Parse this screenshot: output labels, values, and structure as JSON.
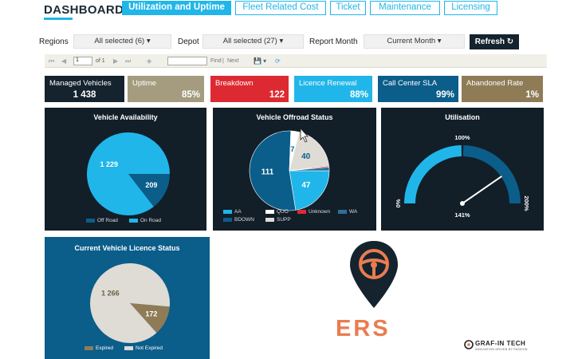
{
  "header": {
    "title": "DASHBOARD",
    "tabs": [
      {
        "label": "Utilization and Uptime",
        "active": true
      },
      {
        "label": "Fleet Related Cost",
        "active": false
      },
      {
        "label": "Ticket",
        "active": false
      },
      {
        "label": "Maintenance",
        "active": false
      },
      {
        "label": "Licensing",
        "active": false
      }
    ]
  },
  "filters": {
    "regions_label": "Regions",
    "regions_value": "All selected (6) ▾",
    "depot_label": "Depot",
    "depot_value": "All selected (27) ▾",
    "month_label": "Report Month",
    "month_value": "Current Month ▾",
    "refresh_label": "Refresh ↻"
  },
  "toolbar": {
    "first": "⏮",
    "prev": "◀",
    "page_value": "1",
    "of_pages": "of 1",
    "next": "▶",
    "last": "⏭",
    "back": "◈",
    "find": "Find",
    "separator": "|",
    "next_find": "Next",
    "export": "💾 ▾",
    "refresh_icon": "⟳"
  },
  "kpis": [
    {
      "label": "Managed Vehicles",
      "value": "1 438",
      "color": "#14232e"
    },
    {
      "label": "Uptime",
      "value": "85%",
      "color": "#a59c7f"
    },
    {
      "label": "Breakdown",
      "value": "122",
      "color": "#dd2a32"
    },
    {
      "label": "Licence Renewal",
      "value": "88%",
      "color": "#21b6e9"
    },
    {
      "label": "Call Center SLA",
      "value": "99%",
      "color": "#0b5d8a"
    },
    {
      "label": "Abandoned Rate",
      "value": "1%",
      "color": "#8f7c57"
    }
  ],
  "availability": {
    "title": "Vehicle Availability",
    "chart_data": {
      "type": "pie",
      "title": "Vehicle Availability",
      "labels": [
        "Off Road",
        "On Road"
      ],
      "values": [
        209,
        1229
      ],
      "colors": [
        "#0b5d8a",
        "#21b6e9"
      ],
      "legend": "bottom"
    },
    "value_labels": [
      "209",
      "1 229"
    ]
  },
  "offroad": {
    "title": "Vehicle Offroad Status",
    "chart_data": {
      "type": "pie",
      "title": "Vehicle Offroad Status",
      "labels": [
        "AA",
        "BDOWN",
        "QUO",
        "SUPP",
        "Unknown",
        "WA"
      ],
      "values": [
        47,
        111,
        7,
        40,
        1,
        3
      ],
      "colors": [
        "#21b6e9",
        "#0b5d8a",
        "#ffffff",
        "#dedcd5",
        "#dd2a32",
        "#2e6f9a"
      ],
      "legend": "bottom"
    },
    "value_labels": [
      "47",
      "111",
      "7",
      "40"
    ]
  },
  "utilisation": {
    "title": "Utilisation",
    "chart_data": {
      "type": "gauge",
      "title": "Utilisation",
      "value": 141,
      "min": 0,
      "max": 200,
      "target": 100
    },
    "min_label": "0%",
    "max_label": "200%",
    "target_label": "100%",
    "value_label": "141%"
  },
  "licence": {
    "title": "Current Vehicle Licence Status",
    "chart_data": {
      "type": "pie",
      "title": "Current Vehicle Licence Status",
      "labels": [
        "Expired",
        "Not Expired"
      ],
      "values": [
        172,
        1266
      ],
      "colors": [
        "#8f7c57",
        "#dedcd5"
      ],
      "legend": "bottom"
    },
    "value_labels": [
      "172",
      "1 266"
    ]
  },
  "brand": {
    "logo_text": "ERS",
    "pin_color": "#14232e",
    "accent_color": "#ea7c4f",
    "company_name": "GRAF-IN TECH",
    "company_tagline": "INNOVATION DRIVEN BY PASSION"
  }
}
